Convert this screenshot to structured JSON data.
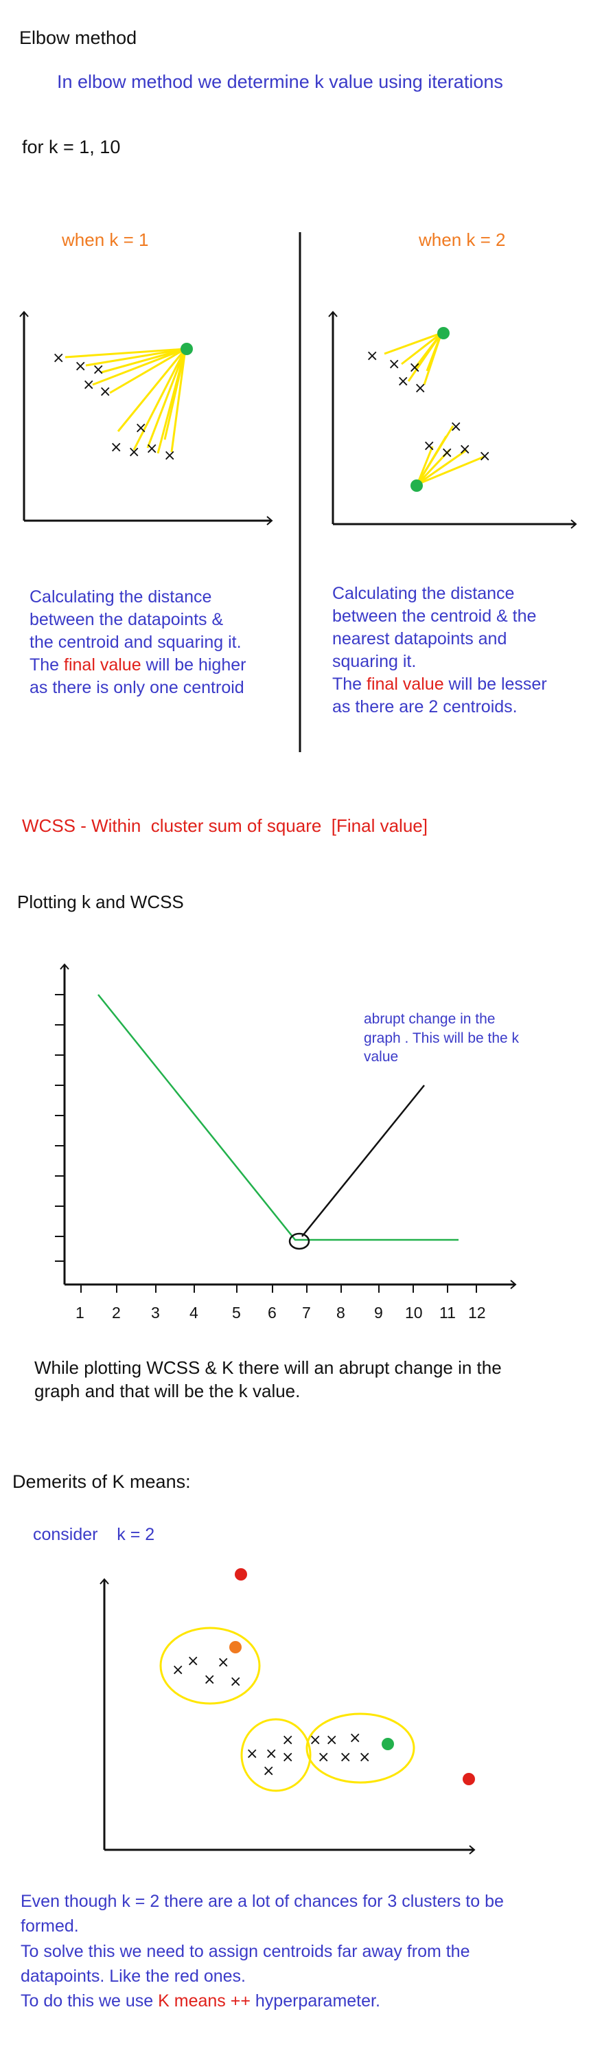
{
  "title": "Elbow method",
  "intro": "In elbow method we determine k value using iterations",
  "for_k": "for k = 1, 10",
  "k1": {
    "label": "when k = 1",
    "desc_lines": [
      "Calculating the distance",
      "between the datapoints  &",
      "the centroid and squaring it."
    ],
    "final_pre": "The ",
    "final_word": "final value",
    "final_post": " will be higher",
    "last_line": "as there is only one centroid"
  },
  "k2": {
    "label": "when k = 2",
    "desc_lines": [
      "Calculating the distance",
      "between the centroid & the",
      "nearest datapoints and",
      "squaring it."
    ],
    "final_pre": "The ",
    "final_word": "final value",
    "final_post": " will be lesser",
    "last_line": "as there are 2 centroids."
  },
  "wcss_def": "WCSS - Within  cluster sum of square  [Final value]",
  "plotting_title": "Plotting k and WCSS",
  "elbow_annotation": [
    "abrupt change in the",
    "graph . This will be the k",
    "value"
  ],
  "x_ticks": [
    "1",
    "2",
    "3",
    "4",
    "5",
    "6",
    "7",
    "8",
    "9",
    "10",
    "11",
    "12"
  ],
  "elbow_summary": [
    "While plotting WCSS & K there will an abrupt change in the",
    "graph and that will be the k value."
  ],
  "demerits_title": "Demerits of K means:",
  "consider": "consider    k = 2",
  "demerit_text": {
    "line1": "Even though k = 2 there are a lot of chances for 3 clusters to be",
    "line2": "formed.",
    "line3": "To solve this we need to assign centroids far away from the",
    "line4": "datapoints. Like the red ones.",
    "line5_pre": "To do this we use ",
    "line5_red": "K means ++",
    "line5_post": " hyperparameter."
  },
  "colors": {
    "text_blue": "#3a3ac8",
    "orange": "#f07a20",
    "red": "#e0201a",
    "yellow": "#ffe600",
    "green": "#22b14c",
    "black": "#111111"
  }
}
